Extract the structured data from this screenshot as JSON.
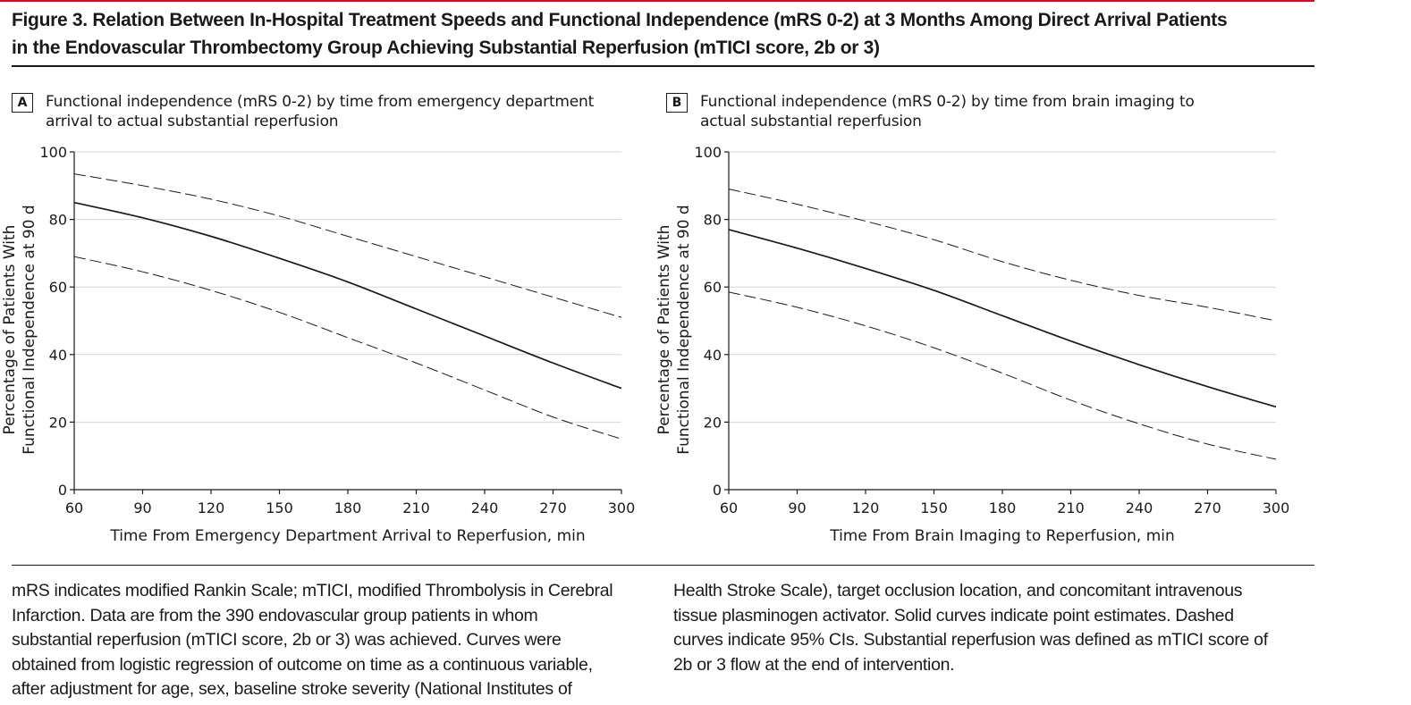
{
  "figure": {
    "title_lines": [
      "Figure 3. Relation Between In-Hospital Treatment Speeds and Functional Independence (mRS 0-2) at 3 Months Among Direct Arrival Patients",
      "in the Endovascular Thrombectomy Group Achieving Substantial Reperfusion (mTICI score, 2b or 3)"
    ],
    "caption_left_lines": [
      "mRS indicates modified Rankin Scale; mTICI, modified Thrombolysis in Cerebral",
      "Infarction. Data are from the 390 endovascular group patients in whom",
      "substantial reperfusion (mTICI score, 2b or 3) was achieved. Curves were",
      "obtained from logistic regression of outcome on time as a continuous variable,",
      "after adjustment for age, sex, baseline stroke severity (National Institutes of"
    ],
    "caption_right_lines": [
      "Health Stroke Scale), target occlusion location, and concomitant intravenous",
      "tissue plasminogen activator. Solid curves indicate point estimates. Dashed",
      "curves indicate 95% CIs. Substantial reperfusion was defined as mTICI score of",
      "2b or 3 flow at the end of intervention."
    ]
  },
  "chart_data": [
    {
      "panel": "A",
      "type": "line",
      "title_lines": [
        "Functional independence (mRS 0-2) by time from emergency department",
        "arrival to actual substantial reperfusion"
      ],
      "xlabel": "Time From Emergency Department Arrival to Reperfusion, min",
      "ylabel_lines": [
        "Percentage of Patients With",
        "Functional Independence at 90 d"
      ],
      "xlim": [
        60,
        300
      ],
      "ylim": [
        0,
        100
      ],
      "xticks": [
        60,
        90,
        120,
        150,
        180,
        210,
        240,
        270,
        300
      ],
      "yticks": [
        0,
        20,
        40,
        60,
        80,
        100
      ],
      "grid": "horizontal",
      "x": [
        60,
        90,
        120,
        150,
        180,
        210,
        240,
        270,
        300
      ],
      "series": [
        {
          "name": "Upper 95% CI",
          "style": "dashed",
          "values": [
            93.5,
            90,
            86,
            81,
            75,
            69,
            63,
            57,
            51
          ]
        },
        {
          "name": "Point estimate",
          "style": "solid",
          "values": [
            85,
            80.5,
            75,
            68.5,
            61.5,
            53.5,
            45.5,
            37.5,
            30
          ]
        },
        {
          "name": "Lower 95% CI",
          "style": "dashed",
          "values": [
            69,
            64.5,
            59,
            52.5,
            45,
            37.5,
            29.5,
            21.5,
            15
          ]
        }
      ]
    },
    {
      "panel": "B",
      "type": "line",
      "title_lines": [
        "Functional independence (mRS 0-2) by time from brain imaging to",
        "actual substantial reperfusion"
      ],
      "xlabel": "Time From Brain Imaging to Reperfusion, min",
      "ylabel_lines": [
        "Percentage of Patients With",
        "Functional Independence at 90 d"
      ],
      "xlim": [
        60,
        300
      ],
      "ylim": [
        0,
        100
      ],
      "xticks": [
        60,
        90,
        120,
        150,
        180,
        210,
        240,
        270,
        300
      ],
      "yticks": [
        0,
        20,
        40,
        60,
        80,
        100
      ],
      "grid": "horizontal",
      "x": [
        60,
        90,
        120,
        150,
        180,
        210,
        240,
        270,
        300
      ],
      "series": [
        {
          "name": "Upper 95% CI",
          "style": "dashed",
          "values": [
            89,
            84.5,
            79.5,
            74,
            67.5,
            62,
            57.5,
            54,
            50
          ]
        },
        {
          "name": "Point estimate",
          "style": "solid",
          "values": [
            77,
            71.5,
            65.5,
            59,
            51.5,
            44,
            37,
            30.5,
            24.5
          ]
        },
        {
          "name": "Lower 95% CI",
          "style": "dashed",
          "values": [
            58.5,
            54,
            48.5,
            42,
            34.5,
            26.5,
            19.5,
            13.5,
            9
          ]
        }
      ]
    }
  ]
}
